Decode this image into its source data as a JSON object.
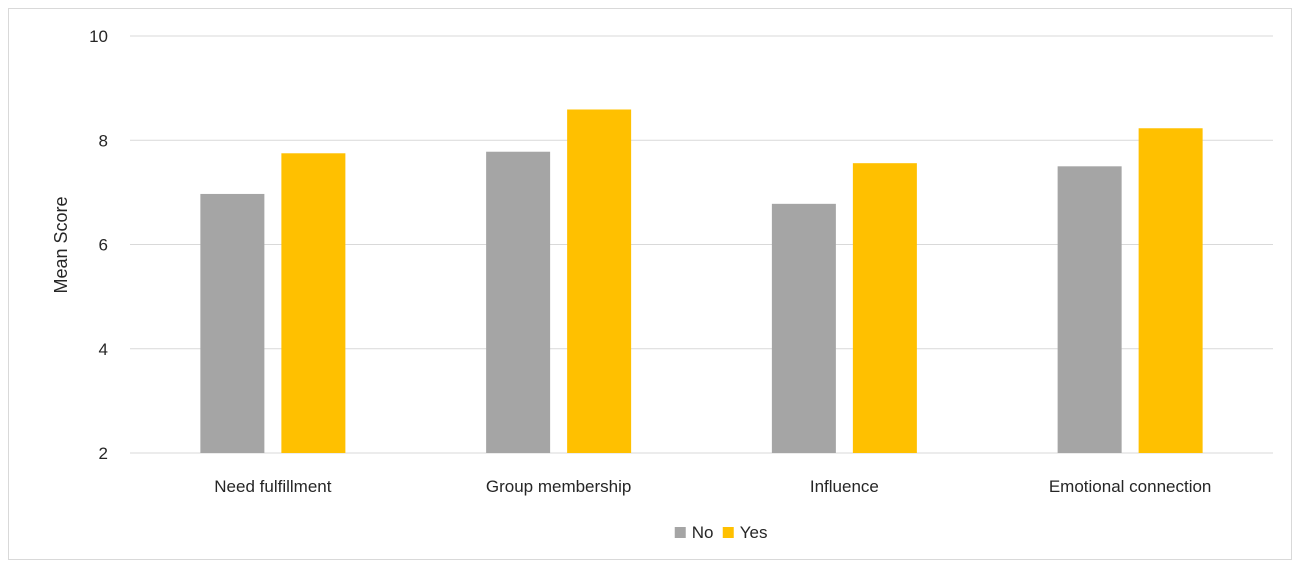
{
  "chart_data": {
    "type": "bar",
    "title": "",
    "xlabel": "",
    "ylabel": "Mean Score",
    "ylim": [
      2,
      10
    ],
    "yticks": [
      2,
      4,
      6,
      8,
      10
    ],
    "categories": [
      "Need fulfillment",
      "Group membership",
      "Influence",
      "Emotional connection"
    ],
    "series": [
      {
        "name": "No",
        "color": "#A5A5A5",
        "values": [
          6.97,
          7.78,
          6.78,
          7.5
        ]
      },
      {
        "name": "Yes",
        "color": "#FFC000",
        "values": [
          7.75,
          8.59,
          7.56,
          8.23
        ]
      }
    ],
    "grid": true,
    "legend_position": "bottom"
  }
}
